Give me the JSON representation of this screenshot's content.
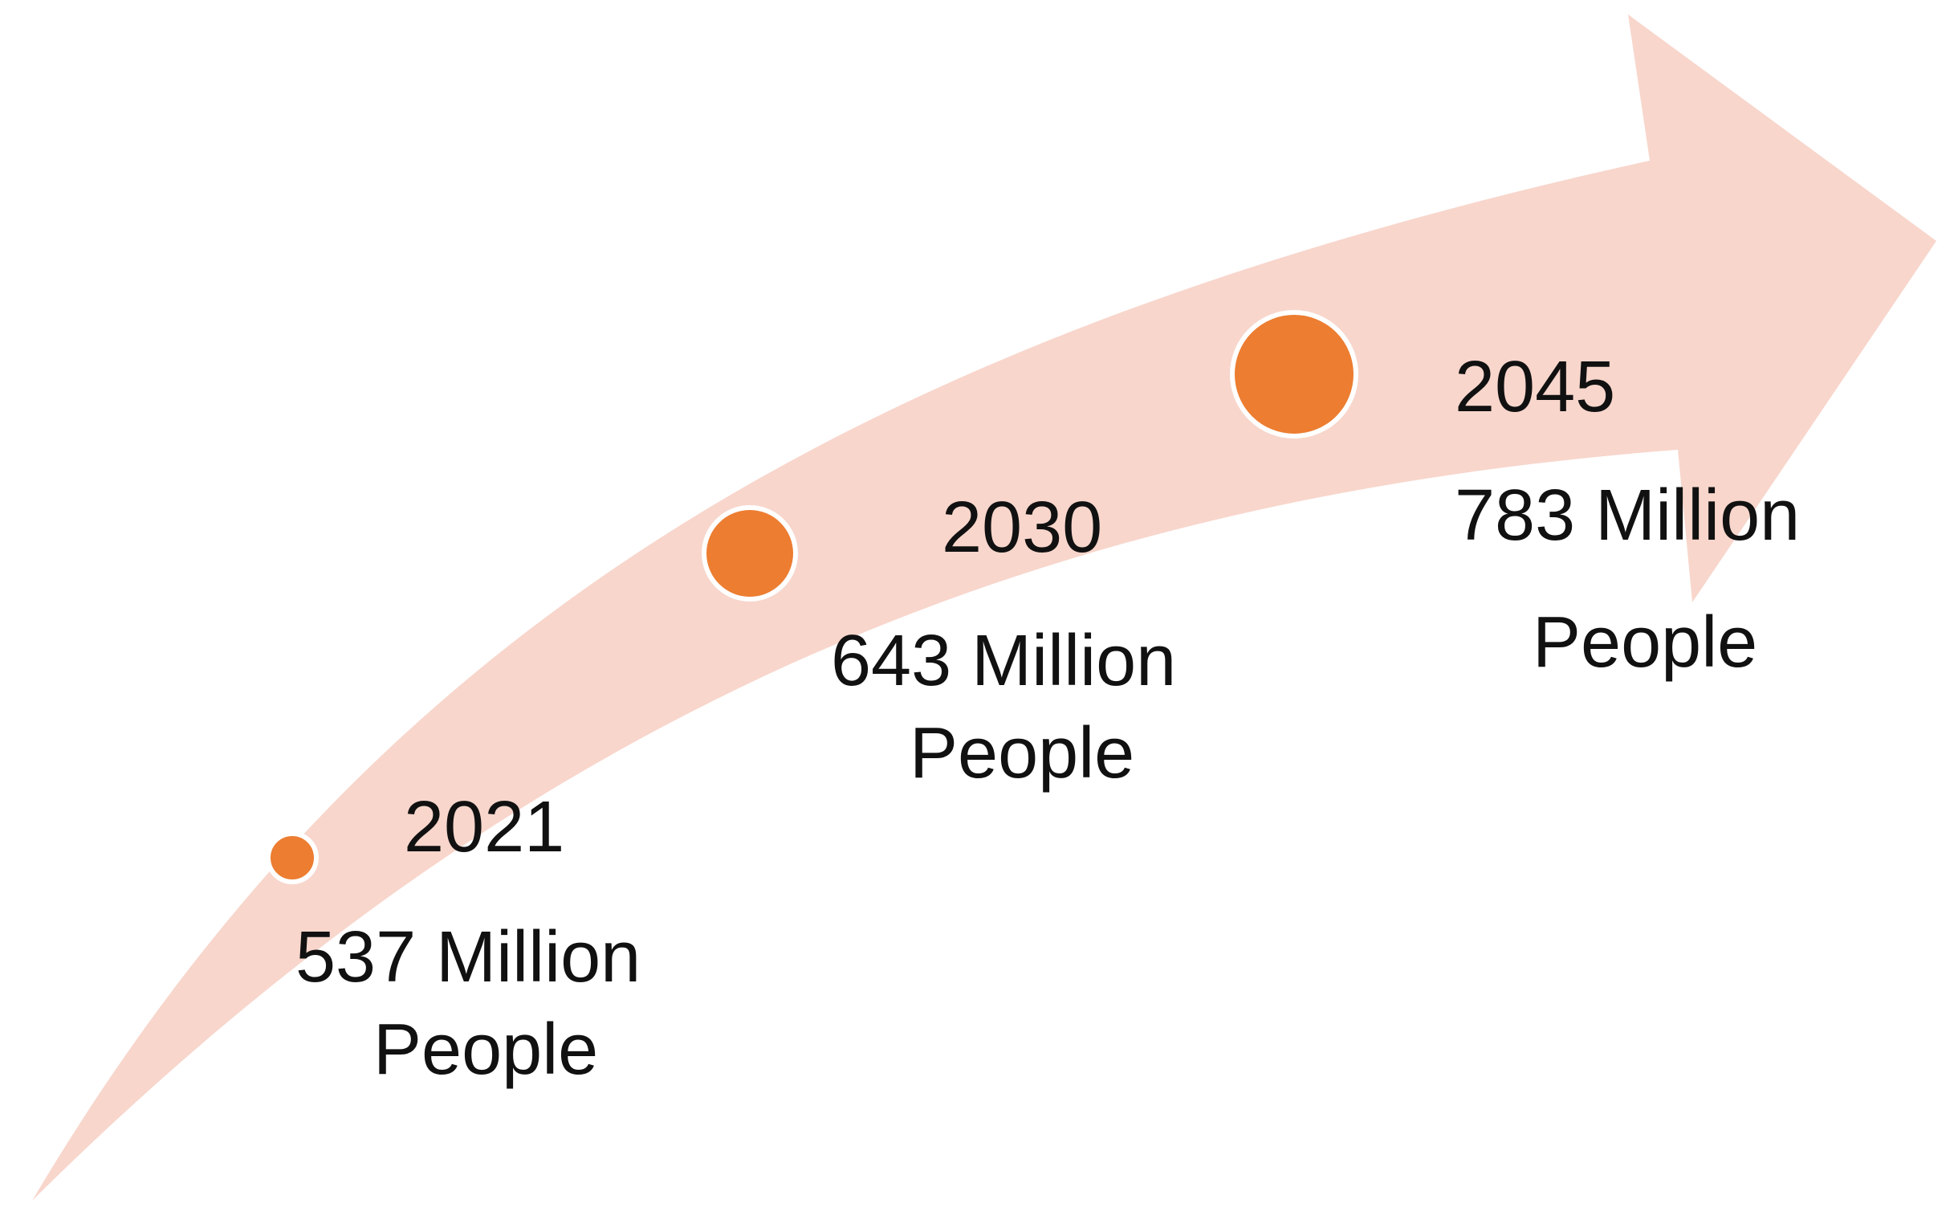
{
  "milestones": [
    {
      "year": "2021",
      "value_line1": "537 Million",
      "value_line2": "People",
      "value_millions": 537
    },
    {
      "year": "2030",
      "value_line1": "643 Million",
      "value_line2": "People",
      "value_millions": 643
    },
    {
      "year": "2045",
      "value_line1": "783 Million",
      "value_line2": "People",
      "value_millions": 783
    }
  ],
  "colors": {
    "arrow_fill": "#f8d6cc",
    "dot_fill": "#ec7d31",
    "dot_ring": "#ffffff",
    "text": "#111111"
  }
}
